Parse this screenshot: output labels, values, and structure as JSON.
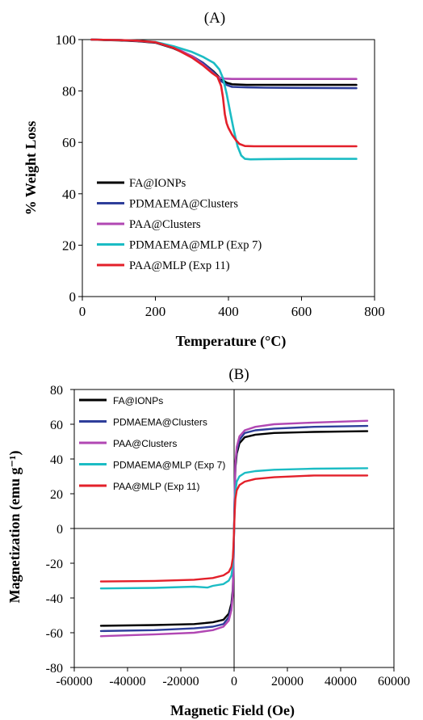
{
  "colors": {
    "FA@IONPs": "#000000",
    "PDMAEMA@Clusters": "#2e3e9a",
    "PAA@Clusters": "#b147b3",
    "PDMAEMA@MLP (Exp 7)": "#1bbcc4",
    "PAA@MLP (Exp 11)": "#e3202a"
  },
  "chart_data": [
    {
      "type": "line",
      "title": "(A)",
      "xlabel": "Temperature (°C)",
      "ylabel": "% Weight Loss",
      "xlim": [
        0,
        800
      ],
      "ylim": [
        0,
        100
      ],
      "xticks": [
        0,
        200,
        400,
        600,
        800
      ],
      "yticks": [
        0,
        20,
        40,
        60,
        80,
        100
      ],
      "grid": false,
      "legend": "lower-left",
      "series": [
        {
          "name": "FA@IONPs",
          "x": [
            25,
            100,
            150,
            200,
            250,
            300,
            330,
            360,
            380,
            395,
            410,
            450,
            500,
            600,
            750
          ],
          "y": [
            100,
            99.7,
            99.4,
            98.8,
            96.6,
            93.4,
            91.0,
            87.5,
            84.6,
            83.2,
            82.6,
            82.4,
            82.4,
            82.4,
            82.4
          ]
        },
        {
          "name": "PDMAEMA@Clusters",
          "x": [
            25,
            100,
            150,
            200,
            250,
            300,
            330,
            360,
            380,
            395,
            410,
            450,
            500,
            600,
            750
          ],
          "y": [
            100,
            99.8,
            99.5,
            98.9,
            96.8,
            93.6,
            91.0,
            87.2,
            83.9,
            82.4,
            81.6,
            81.4,
            81.3,
            81.2,
            81.1
          ]
        },
        {
          "name": "PAA@Clusters",
          "x": [
            25,
            100,
            150,
            200,
            250,
            300,
            330,
            360,
            375,
            390,
            410,
            450,
            500,
            600,
            750
          ],
          "y": [
            100,
            99.8,
            99.5,
            99.0,
            97.1,
            93.5,
            90.3,
            86.6,
            85.2,
            84.8,
            84.7,
            84.7,
            84.7,
            84.7,
            84.7
          ]
        },
        {
          "name": "PDMAEMA@MLP (Exp 7)",
          "x": [
            25,
            100,
            150,
            200,
            250,
            300,
            330,
            360,
            375,
            385,
            395,
            405,
            415,
            425,
            435,
            445,
            460,
            500,
            600,
            750
          ],
          "y": [
            100,
            99.8,
            99.6,
            99.1,
            97.4,
            95.2,
            93.3,
            90.9,
            88.4,
            85.0,
            79.0,
            71.5,
            64.5,
            58.5,
            54.9,
            53.6,
            53.4,
            53.5,
            53.6,
            53.6
          ]
        },
        {
          "name": "PAA@MLP (Exp 11)",
          "x": [
            25,
            100,
            150,
            200,
            250,
            300,
            330,
            355,
            370,
            380,
            385,
            390,
            395,
            400,
            410,
            420,
            430,
            445,
            470,
            500,
            600,
            750
          ],
          "y": [
            100,
            99.8,
            99.6,
            99.0,
            96.8,
            93.0,
            90.0,
            87.0,
            85.5,
            82.0,
            77.5,
            71.0,
            67.5,
            65.6,
            63.0,
            60.9,
            59.4,
            58.6,
            58.5,
            58.5,
            58.5,
            58.5
          ]
        }
      ]
    },
    {
      "type": "line",
      "title": "(B)",
      "xlabel": "Magnetic Field (Oe)",
      "ylabel": "Magnetization (emu g⁻¹)",
      "xlim": [
        -60000,
        60000
      ],
      "ylim": [
        -80,
        80
      ],
      "xticks": [
        -60000,
        -40000,
        -20000,
        0,
        20000,
        40000,
        60000
      ],
      "yticks": [
        -80,
        -60,
        -40,
        -20,
        0,
        20,
        40,
        60,
        80
      ],
      "grid": false,
      "legend": "upper-left",
      "series": [
        {
          "name": "FA@IONPs",
          "x": [
            -50000,
            -30000,
            -15000,
            -8000,
            -4000,
            -2000,
            -1000,
            -500,
            -250,
            0,
            250,
            500,
            1000,
            2000,
            4000,
            8000,
            15000,
            30000,
            50000
          ],
          "y": [
            -56,
            -55.6,
            -55,
            -54,
            -52.5,
            -49,
            -43,
            -35,
            -20,
            0,
            20,
            35,
            43,
            49,
            52.5,
            54,
            55,
            55.6,
            56
          ]
        },
        {
          "name": "PDMAEMA@Clusters",
          "x": [
            -50000,
            -30000,
            -15000,
            -8000,
            -4000,
            -2000,
            -1000,
            -500,
            -250,
            0,
            250,
            500,
            1000,
            2000,
            4000,
            8000,
            15000,
            30000,
            50000
          ],
          "y": [
            -59,
            -58.5,
            -57.5,
            -56.5,
            -55,
            -51,
            -45,
            -37,
            -21,
            0,
            21,
            37,
            45,
            51,
            55,
            56.5,
            57.5,
            58.5,
            59
          ]
        },
        {
          "name": "PAA@Clusters",
          "x": [
            -50000,
            -30000,
            -15000,
            -8000,
            -4000,
            -2000,
            -1000,
            -500,
            -250,
            0,
            250,
            500,
            1000,
            2000,
            4000,
            8000,
            15000,
            30000,
            50000
          ],
          "y": [
            -62,
            -61,
            -60,
            -58.5,
            -56.5,
            -53,
            -47,
            -38,
            -22,
            0,
            22,
            38,
            47,
            53,
            56.5,
            58.5,
            60,
            61,
            62
          ]
        },
        {
          "name": "PDMAEMA@MLP (Exp 7)",
          "x": [
            -50000,
            -30000,
            -15000,
            -10000,
            -8000,
            -4000,
            -2000,
            -1000,
            -500,
            -250,
            0,
            250,
            500,
            1000,
            2000,
            4000,
            8000,
            15000,
            30000,
            50000
          ],
          "y": [
            -34.5,
            -34.2,
            -33.5,
            -34,
            -33,
            -32,
            -30,
            -27,
            -21,
            -13,
            0,
            13,
            21,
            27,
            30,
            32,
            33,
            33.8,
            34.4,
            34.7
          ]
        },
        {
          "name": "PAA@MLP (Exp 11)",
          "x": [
            -50000,
            -30000,
            -15000,
            -8000,
            -4000,
            -2000,
            -1000,
            -500,
            -250,
            0,
            250,
            500,
            1000,
            2000,
            4000,
            8000,
            15000,
            30000,
            50000
          ],
          "y": [
            -30.5,
            -30.2,
            -29.5,
            -28.5,
            -27,
            -25,
            -22,
            -17,
            -10,
            0,
            10,
            17,
            22,
            25,
            27,
            28.5,
            29.5,
            30.5,
            30.5
          ]
        }
      ]
    }
  ]
}
